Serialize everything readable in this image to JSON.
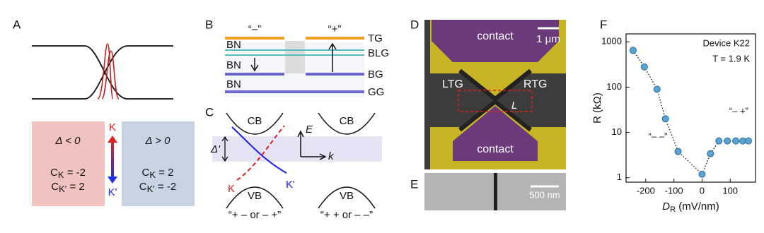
{
  "panel_labels": [
    "A",
    "B",
    "C",
    "D",
    "E",
    "F"
  ],
  "panel_a": {
    "left_box": {
      "condition": "Δ < 0",
      "chern_k": {
        "base": "C",
        "sub": "K",
        "rest": " = -2"
      },
      "chern_kp": {
        "base": "C",
        "sub": "K'",
        "rest": " = 2"
      }
    },
    "right_box": {
      "condition": "Δ > 0",
      "chern_k": {
        "base": "C",
        "sub": "K",
        "rest": " = 2"
      },
      "chern_kp": {
        "base": "C",
        "sub": "K'",
        "rest": " = -2"
      }
    },
    "arrow_top": "K",
    "arrow_bottom": "K'"
  },
  "panel_b": {
    "gate_signs": [
      "“–”",
      "“+”"
    ],
    "layers": [
      "TG",
      "BLG",
      "BG",
      "GG"
    ],
    "insulators": [
      "BN",
      "BN",
      "BN"
    ]
  },
  "panel_c": {
    "bands": [
      "CB",
      "VB",
      "CB",
      "VB"
    ],
    "axis_e": "E",
    "axis_k": "k",
    "gap": "Δ'",
    "valleys": [
      "K",
      "K'"
    ],
    "captions": [
      "“+ – or – +”",
      "“+ + or – –”"
    ]
  },
  "panel_d": {
    "regions": [
      "contact",
      "contact",
      "LTG",
      "RTG"
    ],
    "scale": "1 μm",
    "length": "L"
  },
  "panel_e": {
    "scale": "500 nm"
  },
  "chart_data": {
    "type": "scatter",
    "annotations": [
      "Device K22",
      "T = 1.9 K",
      "“– +”",
      "“– –”"
    ],
    "x_label": {
      "main": "D",
      "sub": "R",
      "unit": " (mV/nm)"
    },
    "y_label": "R (kΩ)",
    "x": [
      -245,
      -205,
      -160,
      -130,
      -85,
      0,
      30,
      60,
      90,
      120,
      145,
      165
    ],
    "values": [
      650,
      280,
      90,
      20,
      3.8,
      1.2,
      3.4,
      6.5,
      6.5,
      6.5,
      6.5,
      6.5
    ],
    "color": "#5ba3d0",
    "line_style": "dotted",
    "xlim": [
      -270,
      190
    ],
    "ylim": [
      0.8,
      1500
    ],
    "log_y": true,
    "xticks": [
      -200,
      -100,
      0,
      100
    ],
    "yticks": [
      1,
      10,
      100,
      1000
    ]
  }
}
